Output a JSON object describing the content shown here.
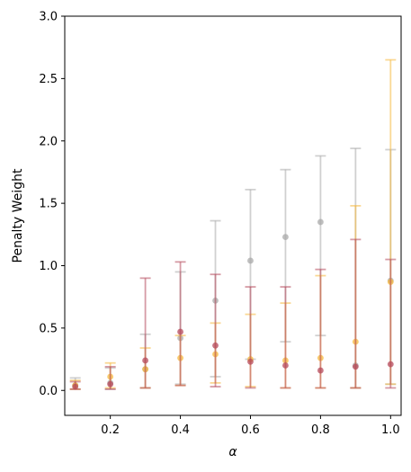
{
  "chart_data": {
    "type": "scatter",
    "xlabel": "α",
    "ylabel": "Penalty Weight",
    "xlim": [
      0.07,
      1.03
    ],
    "ylim": [
      -0.2,
      3.0
    ],
    "xticks": [
      0.2,
      0.4,
      0.6,
      0.8,
      1.0
    ],
    "xtick_labels": [
      "0.2",
      "0.4",
      "0.6",
      "0.8",
      "1.0"
    ],
    "yticks": [
      0.0,
      0.5,
      1.0,
      1.5,
      2.0,
      2.5,
      3.0
    ],
    "ytick_labels": [
      "0.0",
      "0.5",
      "1.0",
      "1.5",
      "2.0",
      "2.5",
      "3.0"
    ],
    "grid": false,
    "series": [
      {
        "color": "#a9a9a9",
        "x": [
          0.1,
          0.2,
          0.3,
          0.4,
          0.5,
          0.6,
          0.7,
          0.8,
          0.9,
          1.0
        ],
        "y": [
          0.04,
          0.06,
          0.17,
          0.42,
          0.72,
          1.04,
          1.23,
          1.35,
          0.2,
          0.88
        ],
        "low": [
          0.01,
          0.01,
          0.02,
          0.05,
          0.11,
          0.25,
          0.39,
          0.44,
          0.02,
          0.05
        ],
        "high": [
          0.1,
          0.18,
          0.45,
          0.95,
          1.36,
          1.61,
          1.77,
          1.88,
          1.94,
          1.93
        ]
      },
      {
        "color": "#f5b83d",
        "x": [
          0.1,
          0.2,
          0.3,
          0.4,
          0.5,
          0.6,
          0.7,
          0.8,
          0.9,
          1.0
        ],
        "y": [
          0.04,
          0.11,
          0.17,
          0.26,
          0.29,
          0.25,
          0.24,
          0.26,
          0.39,
          0.87
        ],
        "low": [
          0.01,
          0.02,
          0.02,
          0.04,
          0.06,
          0.03,
          0.02,
          0.02,
          0.02,
          0.05
        ],
        "high": [
          0.08,
          0.22,
          0.34,
          0.44,
          0.54,
          0.61,
          0.7,
          0.92,
          1.48,
          2.65
        ]
      },
      {
        "color": "#b5495b",
        "x": [
          0.1,
          0.2,
          0.3,
          0.4,
          0.5,
          0.6,
          0.7,
          0.8,
          0.9,
          1.0
        ],
        "y": [
          0.03,
          0.05,
          0.24,
          0.47,
          0.36,
          0.23,
          0.2,
          0.16,
          0.19,
          0.21
        ],
        "low": [
          0.01,
          0.01,
          0.02,
          0.04,
          0.03,
          0.02,
          0.02,
          0.02,
          0.02,
          0.02
        ],
        "high": [
          0.07,
          0.19,
          0.9,
          1.03,
          0.93,
          0.83,
          0.83,
          0.97,
          1.21,
          1.05
        ]
      }
    ]
  }
}
